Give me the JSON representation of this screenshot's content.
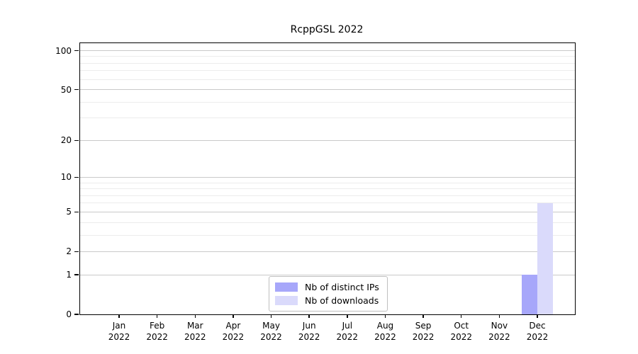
{
  "title": "RcppGSL 2022",
  "chart_data": {
    "type": "bar",
    "title": "RcppGSL 2022",
    "x_month_labels": [
      "Jan",
      "Feb",
      "Mar",
      "Apr",
      "May",
      "Jun",
      "Jul",
      "Aug",
      "Sep",
      "Oct",
      "Nov",
      "Dec"
    ],
    "x_year_label": "2022",
    "series": [
      {
        "name": "Nb of distinct IPs",
        "color": "#a7a7fa",
        "values": [
          0,
          0,
          0,
          0,
          0,
          0,
          0,
          0,
          0,
          0,
          0,
          1
        ]
      },
      {
        "name": "Nb of downloads",
        "color": "#dadafb",
        "values": [
          0,
          0,
          0,
          0,
          0,
          0,
          0,
          0,
          0,
          0,
          0,
          6
        ]
      }
    ],
    "y_axis": {
      "scale": "log1p",
      "ylim": [
        0,
        100
      ],
      "tick_values": [
        100,
        50,
        20,
        10,
        5,
        2,
        1,
        0
      ],
      "minor_gridline_values": [
        90,
        80,
        70,
        60,
        40,
        30,
        9,
        8,
        7,
        6,
        4,
        3
      ]
    },
    "grid": "horizontal",
    "legend_position": "inside-bottom-center"
  },
  "colors": {
    "major_grid": "#c9c9c9",
    "minor_grid": "#ececec",
    "axis": "#000000",
    "background": "#ffffff",
    "legend_border": "#c0c0c0"
  }
}
